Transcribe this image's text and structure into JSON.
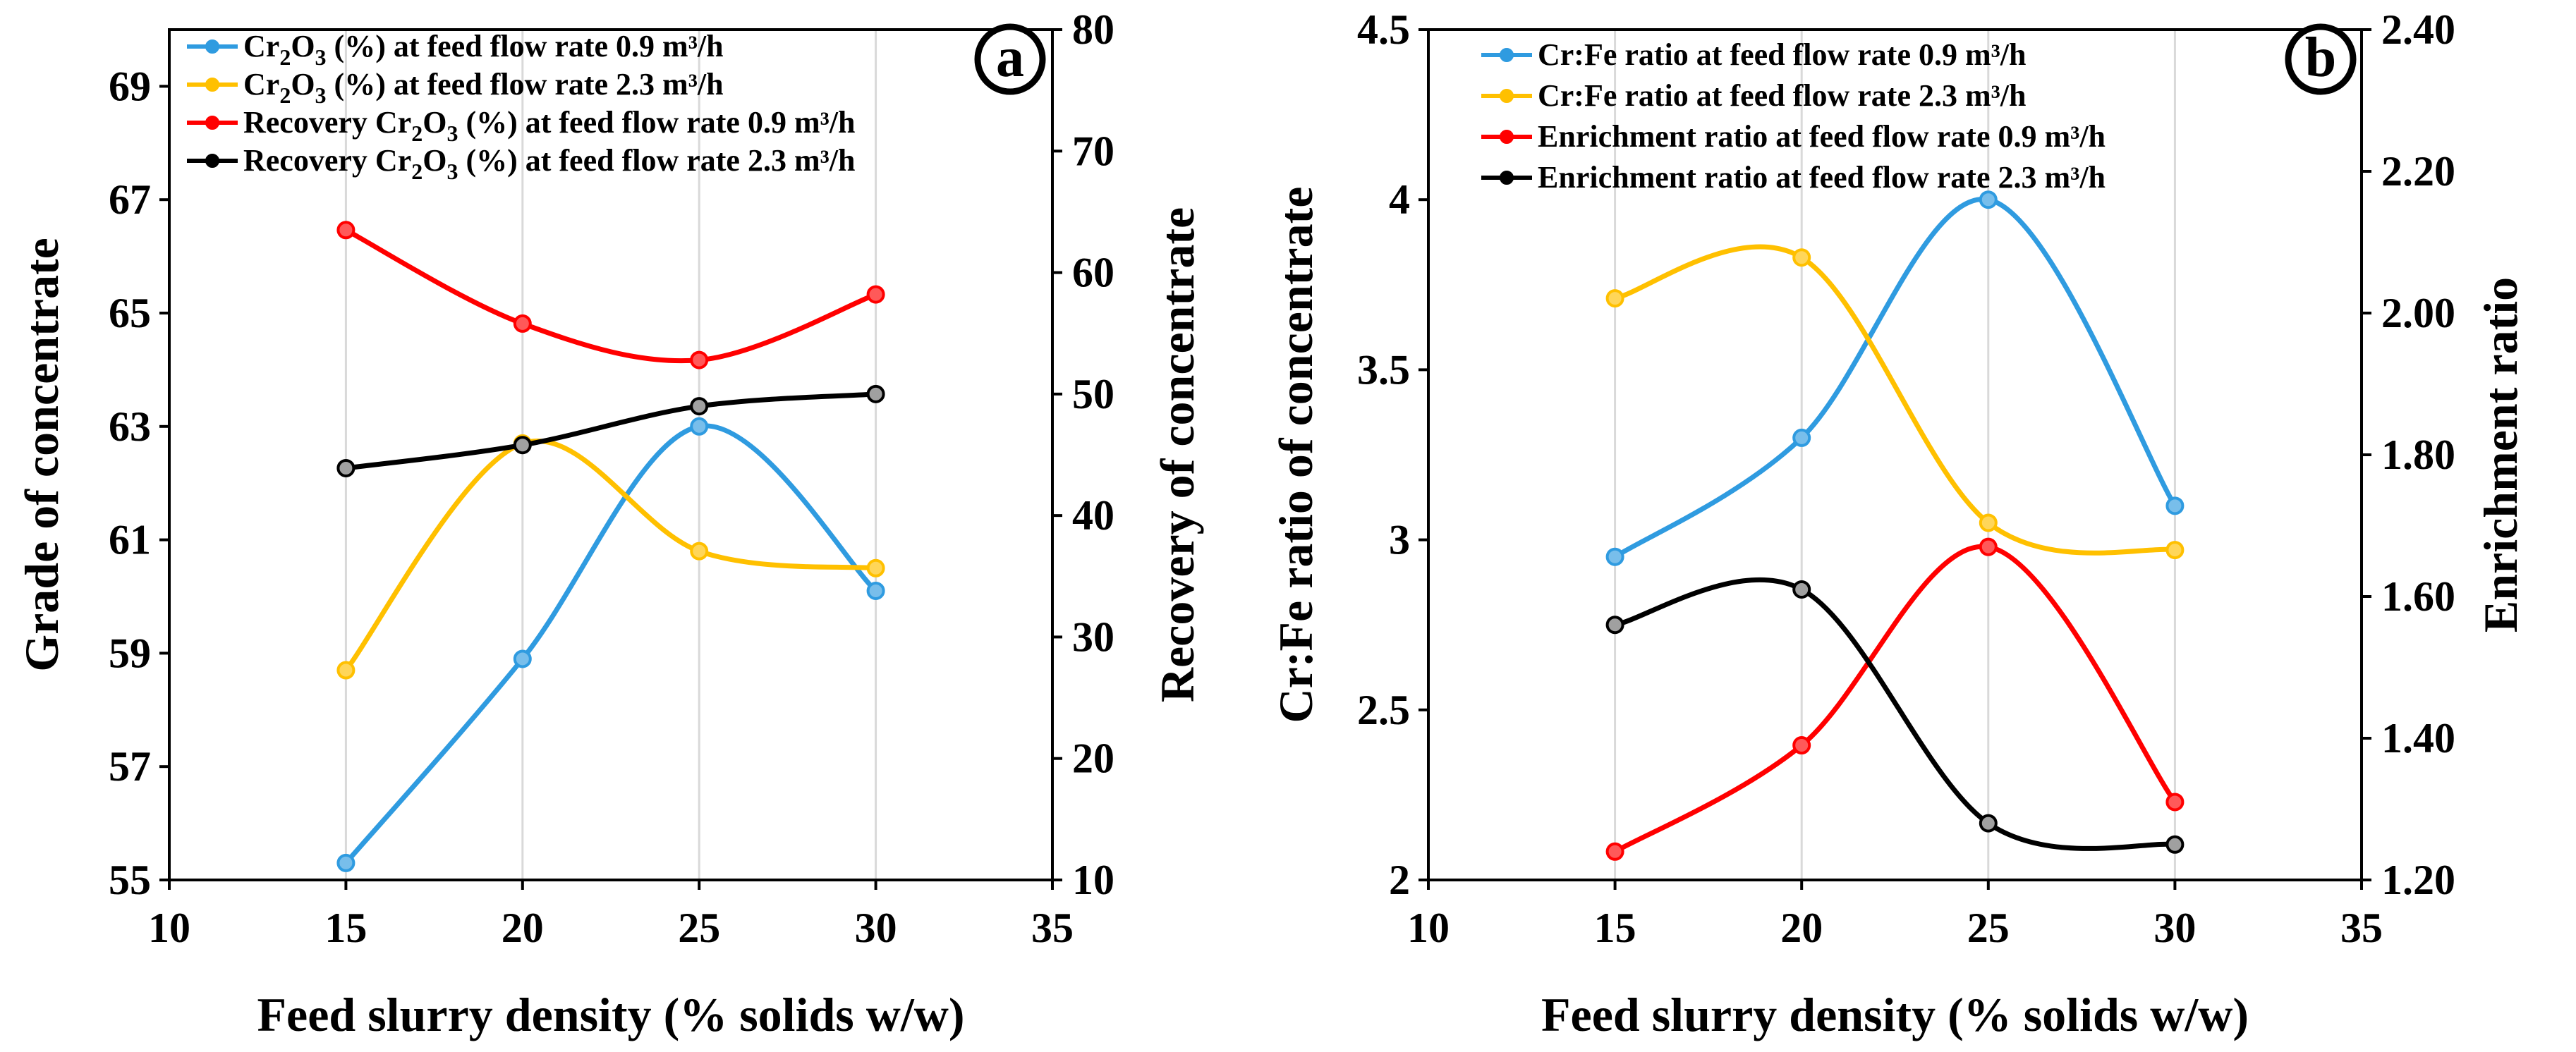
{
  "chart_data": [
    {
      "type": "line",
      "panel_label": "a",
      "xlabel": "Feed slurry density (% solids w/w)",
      "ylabel": "Grade of concentrate",
      "y2label": "Recovery of concentrate",
      "xlim": [
        10,
        35
      ],
      "xticks": [
        "10",
        "15",
        "20",
        "25",
        "30",
        "35"
      ],
      "ylim": [
        55,
        70
      ],
      "yticks": [
        "55",
        "57",
        "59",
        "61",
        "63",
        "65",
        "67",
        "69"
      ],
      "y2lim": [
        10,
        80
      ],
      "y2ticks": [
        "10",
        "20",
        "30",
        "40",
        "50",
        "60",
        "70",
        "80"
      ],
      "x": [
        15,
        20,
        25,
        30
      ],
      "series": [
        {
          "name_parts": [
            "Cr",
            "2",
            "O",
            "3",
            " (%) at feed flow rate 0.9 m³/h"
          ],
          "axis": "left",
          "color": "#2f9be0",
          "values": [
            55.3,
            58.9,
            63.0,
            60.1
          ]
        },
        {
          "name_parts": [
            "Cr",
            "2",
            "O",
            "3",
            " (%) at feed flow rate 2.3 m³/h"
          ],
          "axis": "left",
          "color": "#ffc000",
          "values": [
            58.7,
            62.7,
            60.8,
            60.5
          ]
        },
        {
          "name_parts": [
            "Recovery Cr",
            "2",
            "O",
            "3",
            " (%)  at feed flow rate 0.9 m³/h"
          ],
          "axis": "right",
          "color": "#ff0000",
          "values": [
            63.5,
            55.8,
            52.8,
            58.2
          ]
        },
        {
          "name_parts": [
            "Recovery Cr",
            "2",
            "O",
            "3",
            " (%)  at feed flow rate 2.3 m³/h"
          ],
          "axis": "right",
          "color": "#000000",
          "values": [
            43.9,
            45.8,
            49.0,
            50.0
          ]
        }
      ]
    },
    {
      "type": "line",
      "panel_label": "b",
      "xlabel": "Feed slurry density (% solids w/w)",
      "ylabel": "Cr:Fe ratio of concentrate",
      "y2label": "Enrichment ratio",
      "xlim": [
        10,
        35
      ],
      "xticks": [
        "10",
        "15",
        "20",
        "25",
        "30",
        "35"
      ],
      "ylim": [
        2,
        4.5
      ],
      "yticks": [
        "2",
        "2.5",
        "3",
        "3.5",
        "4",
        "4.5"
      ],
      "y2lim": [
        1.2,
        2.4
      ],
      "y2ticks": [
        "1.20",
        "1.40",
        "1.60",
        "1.80",
        "2.00",
        "2.20",
        "2.40"
      ],
      "x": [
        15,
        20,
        25,
        30
      ],
      "series": [
        {
          "name_parts": [
            "Cr:Fe ratio  at feed flow rate 0.9 m³/h"
          ],
          "axis": "left",
          "color": "#2f9be0",
          "values": [
            2.95,
            3.3,
            4.0,
            3.1
          ]
        },
        {
          "name_parts": [
            "Cr:Fe ratio  at feed flow rate 2.3 m³/h"
          ],
          "axis": "left",
          "color": "#ffc000",
          "values": [
            3.71,
            3.83,
            3.05,
            2.97
          ]
        },
        {
          "name_parts": [
            "Enrichment ratio  at feed flow rate 0.9 m³/h"
          ],
          "axis": "right",
          "color": "#ff0000",
          "values": [
            1.24,
            1.39,
            1.67,
            1.31
          ]
        },
        {
          "name_parts": [
            "Enrichment ratio  at feed flow rate 2.3 m³/h"
          ],
          "axis": "right",
          "color": "#000000",
          "values": [
            1.56,
            1.61,
            1.28,
            1.25
          ]
        }
      ]
    }
  ]
}
